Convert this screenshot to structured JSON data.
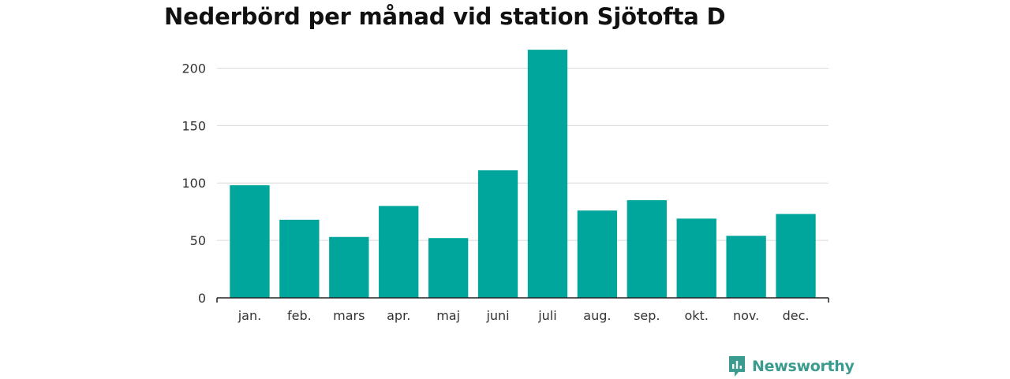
{
  "title": "Nederbörd per månad vid station Sjötofta D",
  "brand": {
    "name": "Newsworthy",
    "icon": "newsworthy-logo-icon",
    "color": "#3a9b8e"
  },
  "colors": {
    "bar": "#00a69c",
    "grid": "#d9d9d9",
    "axis": "#222222"
  },
  "chart_data": {
    "type": "bar",
    "title": "Nederbörd per månad vid station Sjötofta D",
    "xlabel": "",
    "ylabel": "",
    "categories": [
      "jan.",
      "feb.",
      "mars",
      "apr.",
      "maj",
      "juni",
      "juli",
      "aug.",
      "sep.",
      "okt.",
      "nov.",
      "dec."
    ],
    "values": [
      98,
      68,
      53,
      80,
      52,
      111,
      216,
      76,
      85,
      69,
      54,
      73
    ],
    "ylim": [
      0,
      225
    ],
    "yticks": [
      0,
      50,
      100,
      150,
      200
    ],
    "grid": true,
    "legend": "none"
  }
}
